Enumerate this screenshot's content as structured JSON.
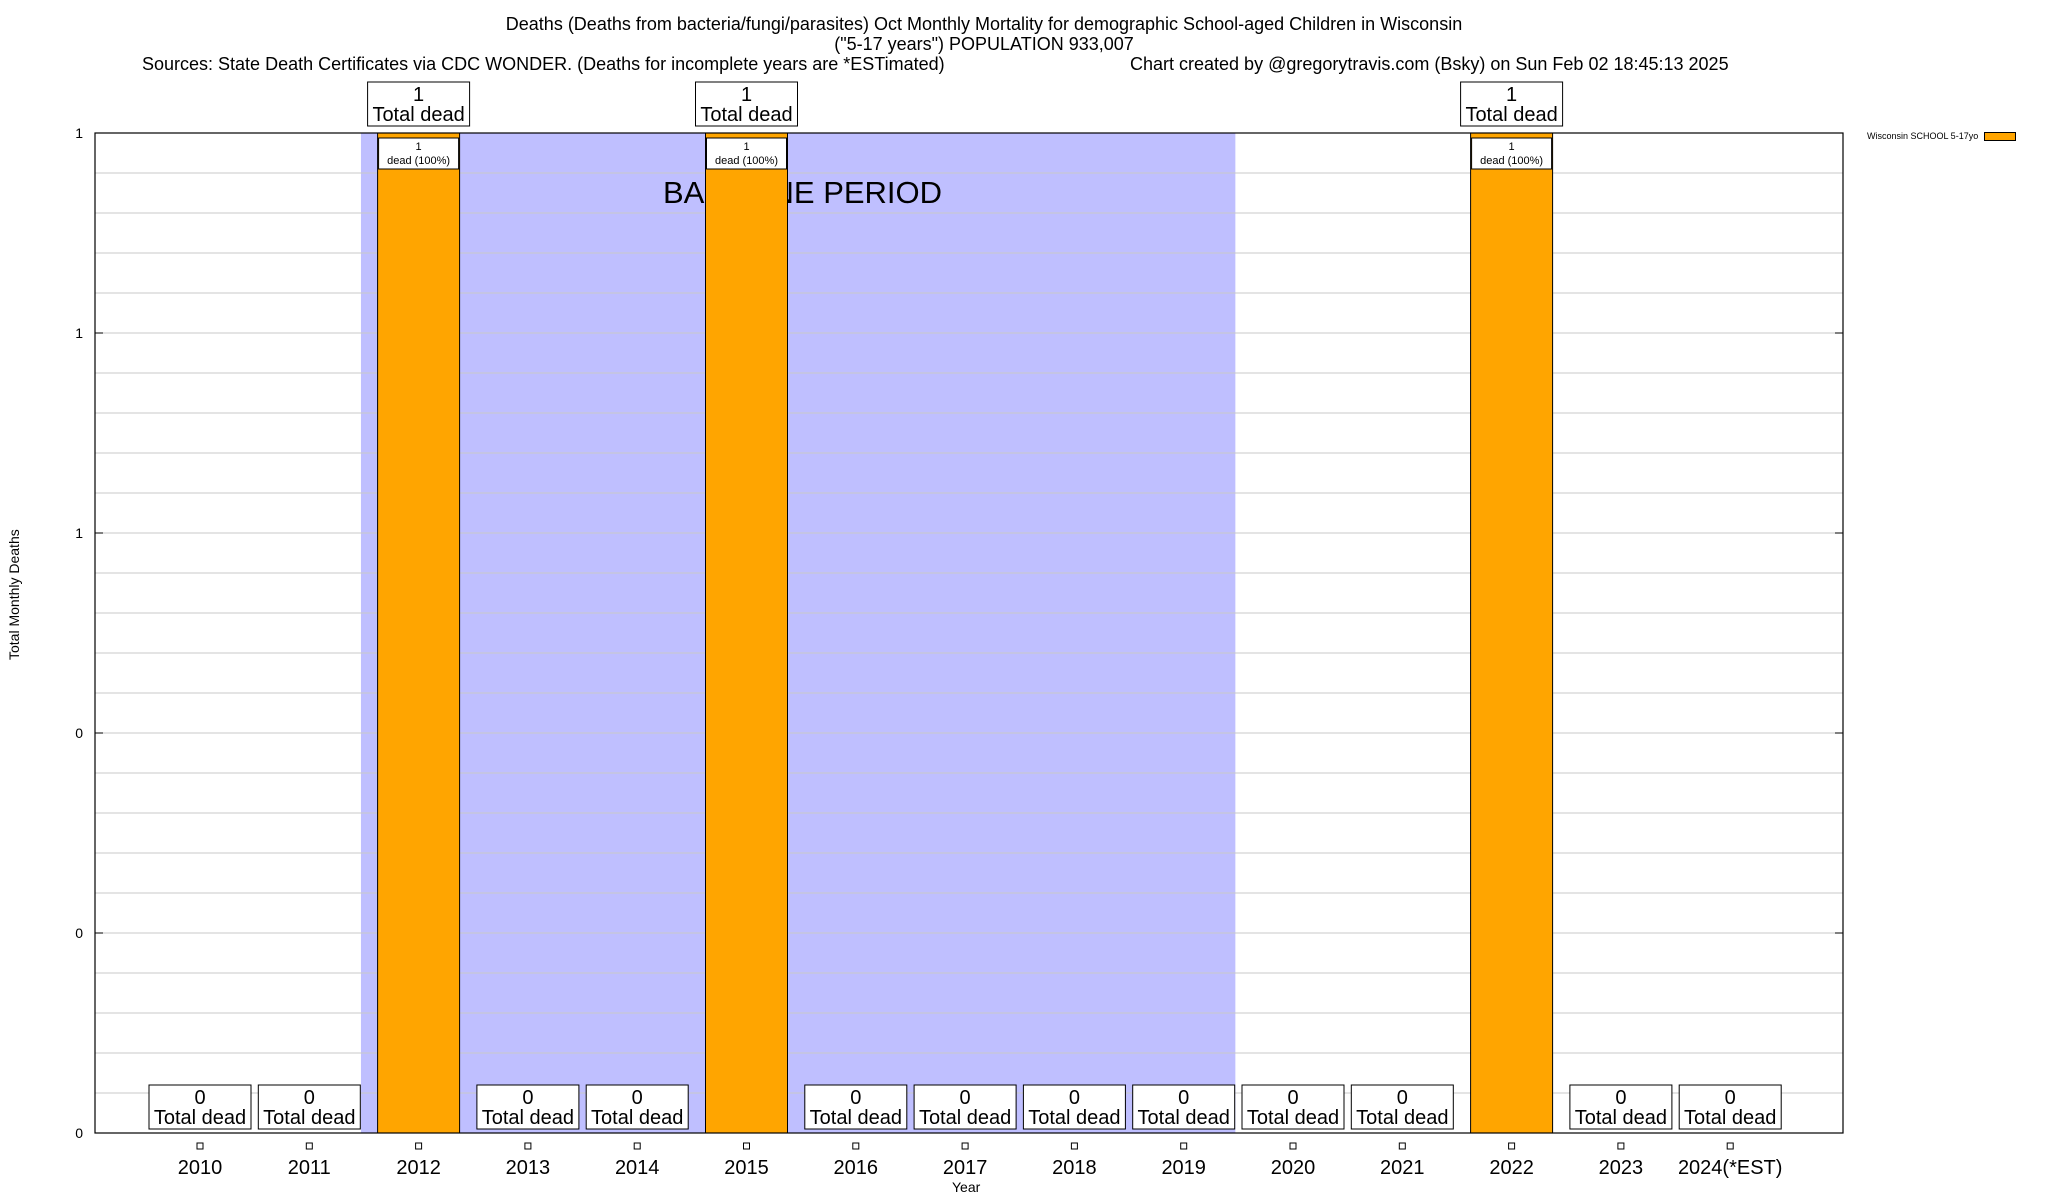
{
  "title": {
    "line1": "Deaths (Deaths from bacteria/fungi/parasites) Oct Monthly Mortality for demographic School-aged Children in Wisconsin",
    "line2": "(\"5-17 years\") POPULATION 933,007",
    "sources": "Sources: State Death Certificates via CDC WONDER. (Deaths for incomplete years are *ESTimated)",
    "credit": "Chart created by @gregorytravis.com (Bsky) on Sun Feb 02 18:45:13 2025"
  },
  "legend": {
    "label": "Wisconsin SCHOOL 5-17yo",
    "color": "#ffa500"
  },
  "baseline_label": "BASELINE PERIOD",
  "chart_data": {
    "type": "bar",
    "xlabel": "Year",
    "ylabel": "Total Monthly Deaths",
    "ylim": [
      0,
      1
    ],
    "y_tick_labels": [
      "0",
      "0",
      "0",
      "1",
      "1",
      "1"
    ],
    "grid": true,
    "categories": [
      "2010",
      "2011",
      "2012",
      "2013",
      "2014",
      "2015",
      "2016",
      "2017",
      "2018",
      "2019",
      "2020",
      "2021",
      "2022",
      "2023",
      "2024(*EST)"
    ],
    "series": [
      {
        "name": "Wisconsin SCHOOL 5-17yo",
        "values": [
          0,
          0,
          1,
          0,
          0,
          1,
          0,
          0,
          0,
          0,
          0,
          0,
          1,
          0,
          0
        ],
        "color": "#ffa500"
      }
    ],
    "total_label_suffix": "Total dead",
    "inner_label_suffix": "dead (100%)",
    "baseline_period": {
      "from": "2012",
      "to": "2019",
      "color": "#bfbfff"
    },
    "legend_position": "top-right"
  }
}
